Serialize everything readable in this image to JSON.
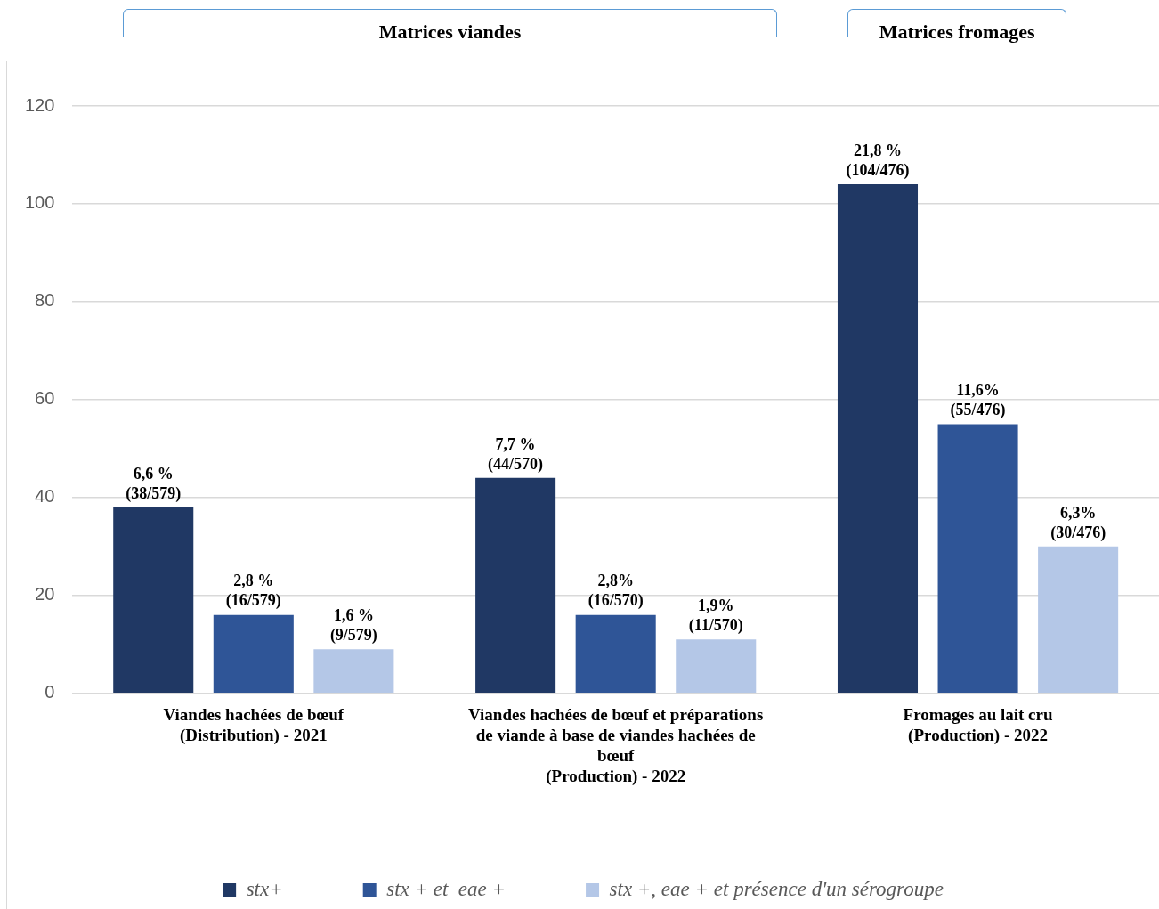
{
  "chart_data": {
    "type": "bar",
    "annotations": [
      "Matrices viandes",
      "Matrices fromages"
    ],
    "categories": [
      "Viandes hachées de bœuf\n(Distribution) - 2021",
      "Viandes hachées de bœuf et préparations\nde viande à base de viandes hachées de\nbœuf\n(Production) - 2022",
      "Fromages au lait cru\n(Production) - 2022"
    ],
    "series": [
      {
        "name": "stx+",
        "color": "#203864",
        "values": [
          38,
          44,
          104
        ],
        "value_labels": [
          "6,6 %\n(38/579)",
          "7,7 %\n(44/570)",
          "21,8 %\n(104/476)"
        ]
      },
      {
        "name": "stx + et  eae +",
        "color": "#2f5597",
        "values": [
          16,
          16,
          55
        ],
        "value_labels": [
          "2,8 %\n(16/579)",
          "2,8%\n(16/570)",
          "11,6%\n(55/476)"
        ]
      },
      {
        "name": "stx +, eae + et présence d'un sérogroupe",
        "color": "#b4c7e7",
        "values": [
          9,
          11,
          30
        ],
        "value_labels": [
          "1,6 %\n(9/579)",
          "1,9%\n(11/570)",
          "6,3%\n(30/476)"
        ]
      }
    ],
    "ylim": [
      0,
      120
    ],
    "yticks": [
      0,
      20,
      40,
      60,
      80,
      100,
      120
    ],
    "grid": "y",
    "legend": "bottom"
  }
}
